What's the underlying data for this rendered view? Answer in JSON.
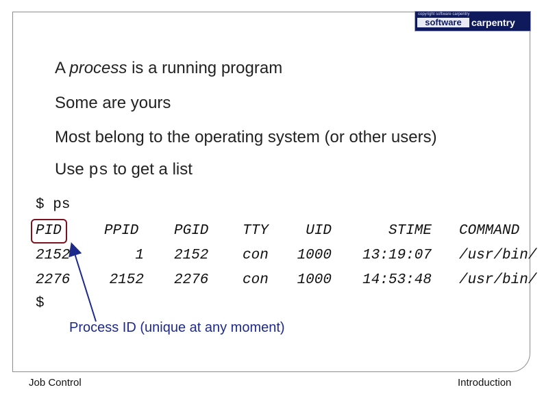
{
  "logo": {
    "tagline": "copyright software carpentry",
    "word1": "software",
    "word2": "carpentry"
  },
  "bullets": {
    "b1_prefix": "A ",
    "b1_em": "process",
    "b1_suffix": "  is a running program",
    "b2": "Some are yours",
    "b3": "Most belong to the operating system (or other users)",
    "b4_prefix": "Use ",
    "b4_code": "ps",
    "b4_suffix": " to get a list"
  },
  "terminal": {
    "prompt1": "$",
    "command": "ps",
    "prompt2": "$",
    "headers": [
      "PID",
      "PPID",
      "PGID",
      "TTY",
      "UID",
      "STIME",
      "COMMAND"
    ],
    "rows": [
      [
        "2152",
        "1",
        "2152",
        "con",
        "1000",
        "13:19:07",
        "/usr/bin/"
      ],
      [
        "2276",
        "2152",
        "2276",
        "con",
        "1000",
        "14:53:48",
        "/usr/bin/"
      ]
    ]
  },
  "callout": "Process ID (unique at any moment)",
  "footer": {
    "left": "Job Control",
    "right": "Introduction"
  },
  "colors": {
    "highlight": "#7a1220",
    "arrow": "#1d2a8a",
    "logo_bg": "#0f1a5c"
  }
}
